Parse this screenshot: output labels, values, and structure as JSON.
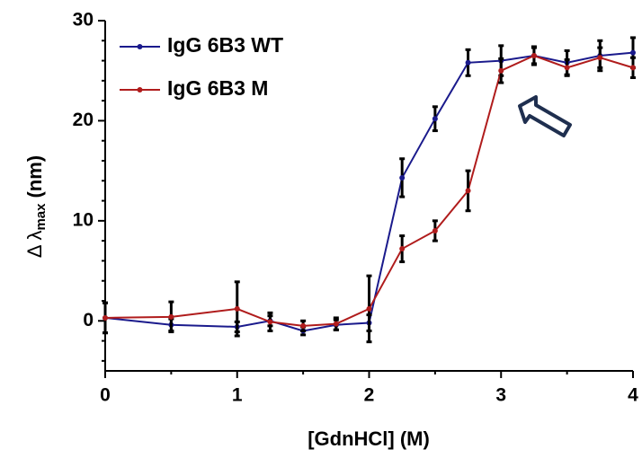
{
  "chart_data": {
    "type": "line",
    "ylabel": {
      "main": "Δ λ",
      "sub": "max",
      "unit": "(nm)"
    },
    "xlabel": "[GdnHCl] (M)",
    "x": [
      0,
      0.5,
      1,
      1.25,
      1.5,
      1.75,
      2,
      2.25,
      2.5,
      2.75,
      3,
      3.25,
      3.5,
      3.75,
      4
    ],
    "series": [
      {
        "name": "IgG 6B3 WT",
        "color": "#1a1a8c",
        "values": [
          0.3,
          -0.4,
          -0.6,
          0,
          -1,
          -0.4,
          -0.2,
          14.3,
          20.2,
          25.8,
          26,
          26.5,
          25.8,
          26.5,
          26.8
        ],
        "errors": [
          1.5,
          0.6,
          0.5,
          0.5,
          0.4,
          0.5,
          0.8,
          1.9,
          1.2,
          1.3,
          1.5,
          0.8,
          1.2,
          1.5,
          1.5
        ]
      },
      {
        "name": "IgG 6B3 M",
        "color": "#b01c1c",
        "values": [
          0.3,
          0.4,
          1.2,
          -0.1,
          -0.5,
          -0.3,
          1.2,
          7.2,
          9,
          13,
          25,
          26.5,
          25.3,
          26.3,
          25.3
        ],
        "errors": [
          1.5,
          1.5,
          2.7,
          0.9,
          0.5,
          0.6,
          3.3,
          1.3,
          1.0,
          2.0,
          1.2,
          0.9,
          0.8,
          1.0,
          1.0
        ]
      }
    ],
    "xlim": [
      0,
      4
    ],
    "xticks": [
      0,
      1,
      2,
      3,
      4
    ],
    "xminorticks": [
      0.5,
      1.5,
      2.5,
      3.5
    ],
    "ylim": [
      -5,
      30
    ],
    "yticks": [
      0,
      10,
      20,
      30
    ],
    "yminorticks": [
      -4,
      -2,
      2,
      4,
      6,
      8,
      12,
      14,
      16,
      18,
      22,
      24,
      26,
      28
    ],
    "legend": "top-left"
  }
}
